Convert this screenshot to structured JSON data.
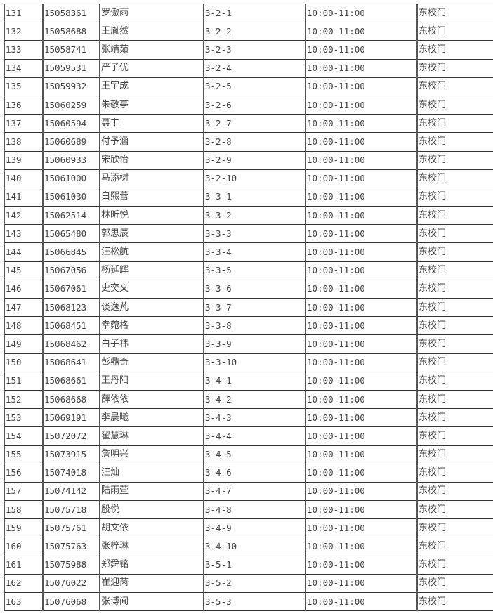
{
  "table": {
    "rows": [
      [
        "131",
        "15058361",
        "罗傲雨",
        "3-2-1",
        "10:00-11:00",
        "东校门"
      ],
      [
        "132",
        "15058688",
        "王胤然",
        "3-2-2",
        "10:00-11:00",
        "东校门"
      ],
      [
        "133",
        "15058741",
        "张靖茹",
        "3-2-3",
        "10:00-11:00",
        "东校门"
      ],
      [
        "134",
        "15059531",
        "严子优",
        "3-2-4",
        "10:00-11:00",
        "东校门"
      ],
      [
        "135",
        "15059932",
        "王宇成",
        "3-2-5",
        "10:00-11:00",
        "东校门"
      ],
      [
        "136",
        "15060259",
        "朱敬亭",
        "3-2-6",
        "10:00-11:00",
        "东校门"
      ],
      [
        "137",
        "15060594",
        "聂丰",
        "3-2-7",
        "10:00-11:00",
        "东校门"
      ],
      [
        "138",
        "15060689",
        "付予涵",
        "3-2-8",
        "10:00-11:00",
        "东校门"
      ],
      [
        "139",
        "15060933",
        "宋欣怡",
        "3-2-9",
        "10:00-11:00",
        "东校门"
      ],
      [
        "140",
        "15061000",
        "马添树",
        "3-2-10",
        "10:00-11:00",
        "东校门"
      ],
      [
        "141",
        "15061030",
        "白熙蕾",
        "3-3-1",
        "10:00-11:00",
        "东校门"
      ],
      [
        "142",
        "15062514",
        "林昕悦",
        "3-3-2",
        "10:00-11:00",
        "东校门"
      ],
      [
        "143",
        "15065480",
        "郭思辰",
        "3-3-3",
        "10:00-11:00",
        "东校门"
      ],
      [
        "144",
        "15066845",
        "汪松航",
        "3-3-4",
        "10:00-11:00",
        "东校门"
      ],
      [
        "145",
        "15067056",
        "杨延辉",
        "3-3-5",
        "10:00-11:00",
        "东校门"
      ],
      [
        "146",
        "15067061",
        "史奕文",
        "3-3-6",
        "10:00-11:00",
        "东校门"
      ],
      [
        "147",
        "15068123",
        "谈逸芃",
        "3-3-7",
        "10:00-11:00",
        "东校门"
      ],
      [
        "148",
        "15068451",
        "幸菀格",
        "3-3-8",
        "10:00-11:00",
        "东校门"
      ],
      [
        "149",
        "15068462",
        "白子祎",
        "3-3-9",
        "10:00-11:00",
        "东校门"
      ],
      [
        "150",
        "15068641",
        "彭鼎奇",
        "3-3-10",
        "10:00-11:00",
        "东校门"
      ],
      [
        "151",
        "15068661",
        "王丹阳",
        "3-4-1",
        "10:00-11:00",
        "东校门"
      ],
      [
        "152",
        "15068668",
        "薛依依",
        "3-4-2",
        "10:00-11:00",
        "东校门"
      ],
      [
        "153",
        "15069191",
        "李晨曦",
        "3-4-3",
        "10:00-11:00",
        "东校门"
      ],
      [
        "154",
        "15072072",
        "翟慧琳",
        "3-4-4",
        "10:00-11:00",
        "东校门"
      ],
      [
        "155",
        "15073915",
        "詹明兴",
        "3-4-5",
        "10:00-11:00",
        "东校门"
      ],
      [
        "156",
        "15074018",
        "汪灿",
        "3-4-6",
        "10:00-11:00",
        "东校门"
      ],
      [
        "157",
        "15074142",
        "陆雨萱",
        "3-4-7",
        "10:00-11:00",
        "东校门"
      ],
      [
        "158",
        "15075718",
        "殷悦",
        "3-4-8",
        "10:00-11:00",
        "东校门"
      ],
      [
        "159",
        "15075761",
        "胡文依",
        "3-4-9",
        "10:00-11:00",
        "东校门"
      ],
      [
        "160",
        "15075763",
        "张梓琳",
        "3-4-10",
        "10:00-11:00",
        "东校门"
      ],
      [
        "161",
        "15075988",
        "郑舜铭",
        "3-5-1",
        "10:00-11:00",
        "东校门"
      ],
      [
        "162",
        "15076022",
        "崔迎芮",
        "3-5-2",
        "10:00-11:00",
        "东校门"
      ],
      [
        "163",
        "15076068",
        "张博闻",
        "3-5-3",
        "10:00-11:00",
        "东校门"
      ]
    ]
  }
}
